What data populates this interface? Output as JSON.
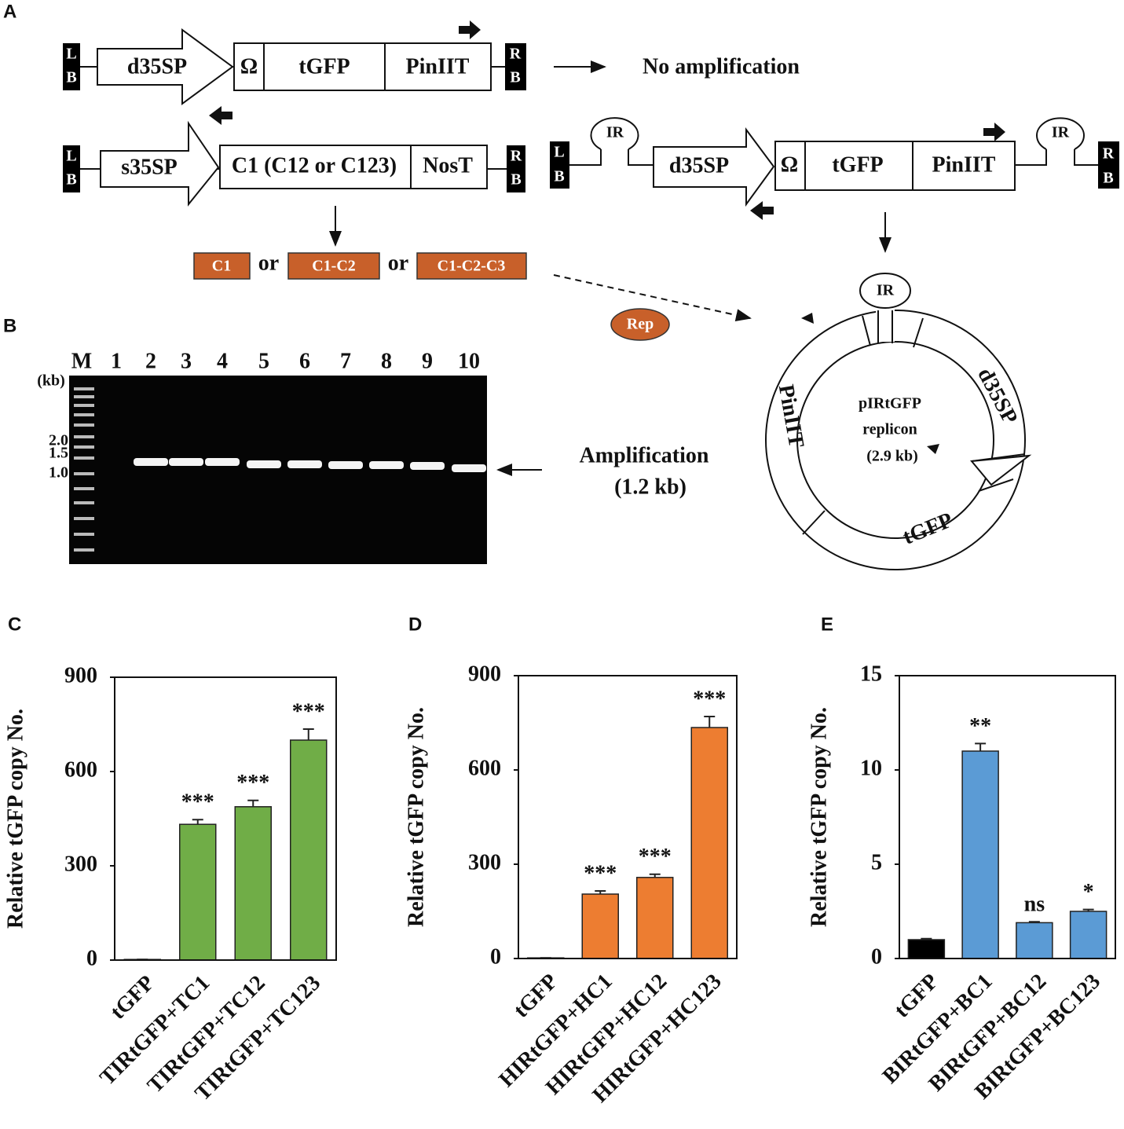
{
  "panels": [
    "A",
    "B"
  ],
  "diagram": {
    "constructs": [
      {
        "left": [
          "L",
          "B"
        ],
        "segments": [
          "d35SP",
          "Ω",
          "tGFP",
          "PinIIT"
        ],
        "right": [
          "R",
          "B"
        ],
        "result": "No amplification"
      },
      {
        "left": [
          "L",
          "B"
        ],
        "segments": [
          "s35SP",
          "C1 (C12 or C123)",
          "NosT"
        ],
        "right": [
          "R",
          "B"
        ]
      },
      {
        "left": [
          "L",
          "B"
        ],
        "loops": [
          "IR",
          "IR"
        ],
        "segments": [
          "d35SP",
          "Ω",
          "tGFP",
          "PinIIT"
        ],
        "right": [
          "R",
          "B"
        ]
      }
    ],
    "products": {
      "items": [
        "C1",
        "C1-C2",
        "C1-C2-C3"
      ],
      "separators": [
        "or",
        "or"
      ]
    },
    "rep": "Rep",
    "replicon": {
      "loop": "IR",
      "segments": [
        "d35SP",
        "tGFP",
        "PinIIT"
      ],
      "center": [
        "pIRtGFP",
        "replicon",
        "(2.9 kb)"
      ]
    }
  },
  "gel": {
    "lanes": [
      "M",
      "1",
      "2",
      "3",
      "4",
      "5",
      "6",
      "7",
      "8",
      "9",
      "10"
    ],
    "unit": "(kb)",
    "markers": [
      "2.0",
      "1.5",
      "1.0"
    ],
    "result": [
      "Amplification",
      "(1.2 kb)"
    ]
  },
  "chart_data": [
    {
      "type": "bar",
      "panel": "C",
      "ylabel": "Relative tGFP copy No.",
      "categories": [
        "tGFP",
        "TIRtGFP+TC1",
        "TIRtGFP+TC12",
        "TIRtGFP+TC123"
      ],
      "values": [
        2,
        432,
        488,
        700
      ],
      "errors": [
        0,
        15,
        20,
        35
      ],
      "annotations": [
        null,
        "***",
        "***",
        "***"
      ],
      "colors": [
        "#70ad47",
        "#70ad47",
        "#70ad47",
        "#70ad47"
      ],
      "ylim": [
        0,
        900
      ],
      "yticks": [
        0,
        300,
        600,
        900
      ]
    },
    {
      "type": "bar",
      "panel": "D",
      "ylabel": "Relative tGFP copy No.",
      "categories": [
        "tGFP",
        "HIRtGFP+HC1",
        "HIRtGFP+HC12",
        "HIRtGFP+HC123"
      ],
      "values": [
        2,
        205,
        258,
        735
      ],
      "errors": [
        0,
        10,
        10,
        35
      ],
      "annotations": [
        null,
        "***",
        "***",
        "***"
      ],
      "colors": [
        "#ed7d31",
        "#ed7d31",
        "#ed7d31",
        "#ed7d31"
      ],
      "ylim": [
        0,
        900
      ],
      "yticks": [
        0,
        300,
        600,
        900
      ]
    },
    {
      "type": "bar",
      "panel": "E",
      "ylabel": "Relative tGFP copy No.",
      "categories": [
        "tGFP",
        "BIRtGFP+BC1",
        "BIRtGFP+BC12",
        "BIRtGFP+BC123"
      ],
      "values": [
        1,
        11,
        1.9,
        2.5
      ],
      "errors": [
        0.05,
        0.4,
        0.05,
        0.1
      ],
      "annotations": [
        null,
        "**",
        "ns",
        "*"
      ],
      "colors": [
        "#000000",
        "#5b9bd5",
        "#5b9bd5",
        "#5b9bd5"
      ],
      "ylim": [
        0,
        15
      ],
      "yticks": [
        0,
        5,
        10,
        15
      ]
    }
  ]
}
